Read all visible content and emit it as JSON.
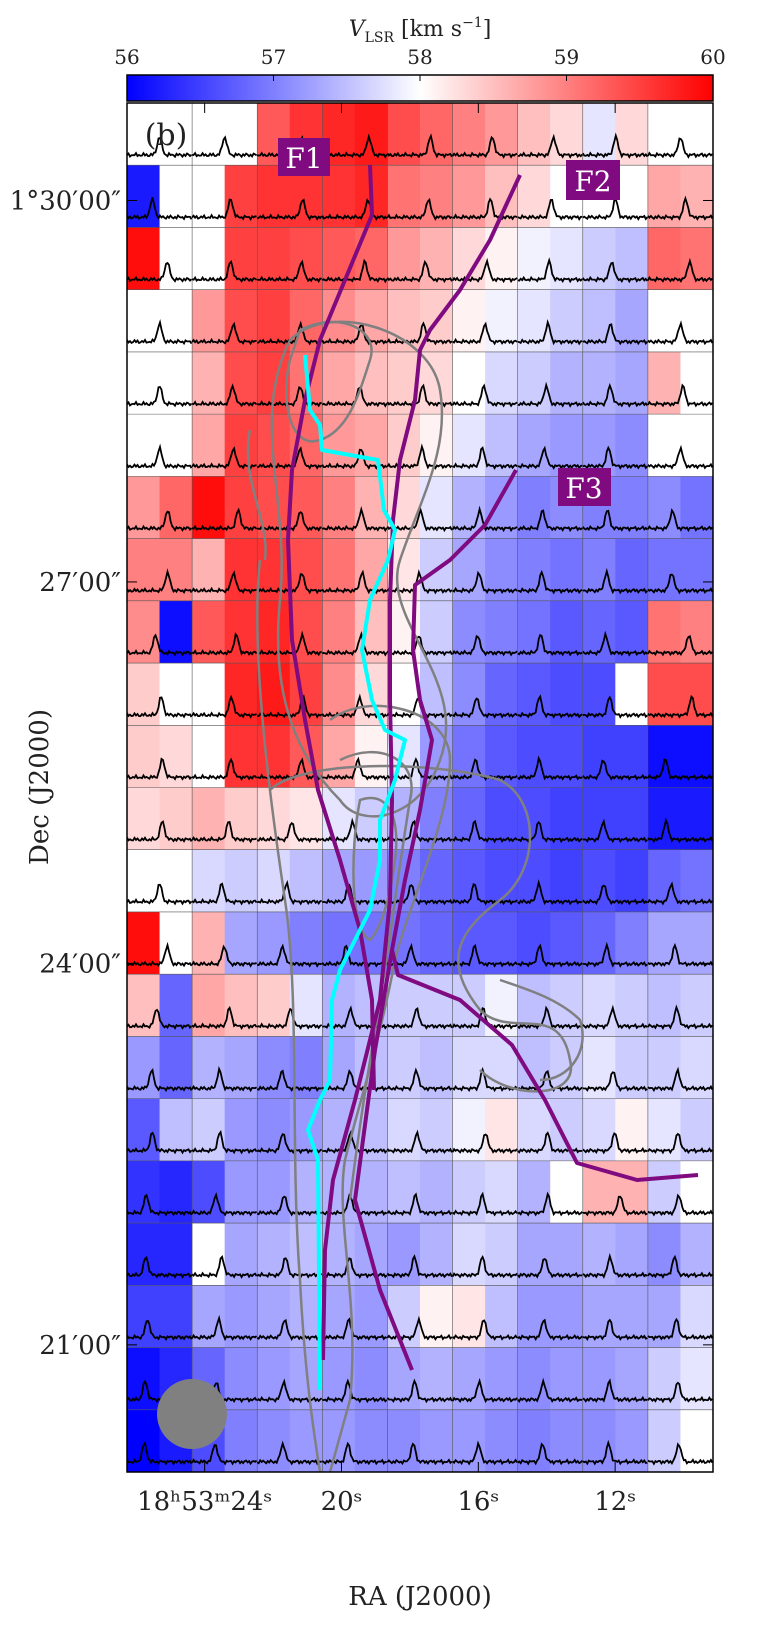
{
  "chart_data": {
    "type": "heatmap",
    "panel_label": "(b)",
    "xlabel": "RA (J2000)",
    "ylabel": "Dec (J2000)",
    "colorbar": {
      "label_parts": [
        "V",
        "LSR",
        " [km s",
        "−1",
        "]"
      ],
      "lim": [
        56,
        60
      ],
      "ticks": [
        56,
        57,
        58,
        59,
        60
      ],
      "colormap": [
        "#0000ff",
        "#ffffff",
        "#ff0000"
      ]
    },
    "xlim": [
      26.27,
      9.14
    ],
    "xticks": [
      {
        "value": 24,
        "label": "18ʰ53ᵐ24ˢ"
      },
      {
        "value": 20,
        "label": "20ˢ"
      },
      {
        "value": 16,
        "label": "16ˢ"
      },
      {
        "value": 12,
        "label": "12ˢ"
      }
    ],
    "ylim": [
      4800,
      5446
    ],
    "yticks": [
      {
        "value": 5400,
        "label": "1°30′00″"
      },
      {
        "value": 5220,
        "label": "27′00″"
      },
      {
        "value": 5040,
        "label": "24′00″"
      },
      {
        "value": 4860,
        "label": "21′00″"
      }
    ],
    "grid": true,
    "filament_labels": [
      "F1",
      "F2",
      "F3"
    ],
    "values": [
      [
        58,
        58,
        58,
        58,
        59.3,
        59.6,
        59.7,
        59.8,
        59.4,
        59.2,
        59.0,
        58.8,
        58.5,
        58.3,
        57.8,
        58.3,
        58,
        58
      ],
      [
        56.2,
        58,
        58,
        59.5,
        59.6,
        59.6,
        59.6,
        59.7,
        59.1,
        59.0,
        58.8,
        58.5,
        58.3,
        58.0,
        58.0,
        58.0,
        58.7,
        58.6
      ],
      [
        59.9,
        58,
        58,
        59.5,
        59.5,
        59.4,
        59.3,
        59.2,
        58.8,
        58.6,
        58.3,
        58.1,
        57.9,
        57.8,
        57.6,
        57.5,
        59.2,
        59.1
      ],
      [
        58,
        58,
        58.8,
        59.4,
        59.5,
        59.2,
        58.9,
        58.7,
        58.5,
        58.4,
        58.1,
        57.9,
        57.8,
        57.6,
        57.5,
        57.3,
        58,
        58
      ],
      [
        58,
        58,
        58.6,
        59.4,
        59.5,
        59.1,
        58.7,
        58.5,
        58.4,
        58.3,
        58.0,
        57.7,
        57.6,
        57.4,
        57.4,
        57.3,
        58.6,
        58
      ],
      [
        58,
        58,
        58.7,
        59.5,
        59.4,
        59.2,
        58.8,
        58.7,
        58.4,
        58.1,
        57.8,
        57.5,
        57.3,
        57.2,
        57.2,
        57.1,
        58,
        58
      ],
      [
        58.8,
        59.2,
        59.9,
        59.5,
        59.4,
        59.3,
        59.0,
        58.6,
        58.3,
        57.8,
        57.4,
        57.2,
        57.0,
        57.1,
        57.0,
        57.0,
        57.1,
        56.9
      ],
      [
        59.0,
        59.0,
        58.6,
        59.6,
        59.6,
        59.4,
        59.1,
        58.7,
        58.2,
        57.6,
        57.3,
        57.1,
        57.0,
        56.9,
        57.0,
        56.8,
        56.9,
        56.9
      ],
      [
        58.9,
        56.1,
        59.3,
        59.6,
        59.7,
        59.4,
        59.0,
        58.5,
        58.1,
        57.6,
        57.1,
        57.0,
        56.9,
        56.7,
        56.8,
        56.7,
        59.1,
        59.0
      ],
      [
        58.4,
        58,
        58,
        59.7,
        59.8,
        59.5,
        58.9,
        58.3,
        58.0,
        57.5,
        57.1,
        56.8,
        56.7,
        56.6,
        56.6,
        58,
        59.4,
        59.4
      ],
      [
        58.4,
        58.3,
        58,
        59.6,
        59.6,
        59.3,
        58.7,
        58.1,
        57.8,
        57.2,
        56.9,
        56.7,
        56.6,
        56.6,
        56.5,
        56.5,
        56.1,
        56.1
      ],
      [
        58.3,
        58.4,
        58.6,
        58.4,
        58.3,
        58.2,
        57.8,
        57.6,
        57.4,
        57.0,
        56.8,
        56.6,
        56.6,
        56.5,
        56.5,
        56.5,
        56.2,
        56.2
      ],
      [
        58,
        58,
        57.7,
        57.6,
        57.7,
        57.5,
        57.3,
        57.2,
        57.0,
        56.8,
        56.7,
        56.6,
        56.6,
        56.5,
        56.6,
        56.5,
        56.8,
        56.9
      ],
      [
        59.9,
        58,
        58.6,
        57.3,
        57.2,
        57.0,
        56.9,
        56.9,
        56.9,
        56.8,
        56.7,
        56.7,
        56.6,
        56.7,
        56.8,
        57.0,
        57.3,
        57.3
      ],
      [
        58.5,
        56.8,
        58.7,
        58.5,
        58.4,
        57.8,
        57.4,
        57.5,
        57.6,
        57.6,
        57.6,
        57.9,
        57.5,
        57.6,
        57.7,
        57.6,
        57.5,
        57.6
      ],
      [
        57.2,
        56.8,
        57.4,
        57.3,
        57.1,
        57.0,
        57.3,
        57.5,
        57.6,
        57.5,
        57.7,
        57.7,
        57.5,
        57.6,
        57.8,
        57.6,
        57.6,
        57.7
      ],
      [
        56.7,
        57.5,
        57.6,
        57.2,
        57.1,
        57.2,
        57.4,
        57.5,
        57.7,
        57.6,
        57.9,
        58.2,
        57.7,
        57.6,
        57.7,
        58.1,
        57.8,
        57.6
      ],
      [
        56.4,
        56.3,
        56.6,
        57.2,
        57.2,
        57.4,
        57.4,
        57.4,
        57.5,
        57.4,
        57.6,
        57.7,
        57.4,
        58.0,
        58.6,
        58.6,
        57.6,
        58
      ],
      [
        56.3,
        56.3,
        58,
        57.3,
        57.4,
        57.5,
        57.4,
        57.3,
        57.2,
        57.4,
        57.7,
        57.6,
        57.3,
        57.3,
        57.4,
        57.3,
        57.1,
        57.4
      ],
      [
        56.5,
        56.5,
        57.3,
        57.2,
        57.3,
        57.4,
        57.3,
        57.2,
        57.6,
        58.1,
        58.2,
        57.5,
        57.2,
        57.2,
        57.3,
        57.3,
        57.3,
        57.7
      ],
      [
        56.1,
        56.3,
        56.8,
        57.1,
        57.2,
        57.3,
        57.2,
        57.1,
        57.3,
        57.4,
        57.3,
        57.2,
        57.1,
        57.2,
        57.2,
        57.3,
        57.6,
        57.8
      ],
      [
        56.0,
        56.2,
        56.6,
        57.0,
        57.1,
        57.2,
        57.2,
        57.1,
        57.1,
        57.2,
        57.2,
        57.1,
        57.0,
        57.1,
        57.1,
        57.2,
        57.6,
        58
      ]
    ]
  }
}
